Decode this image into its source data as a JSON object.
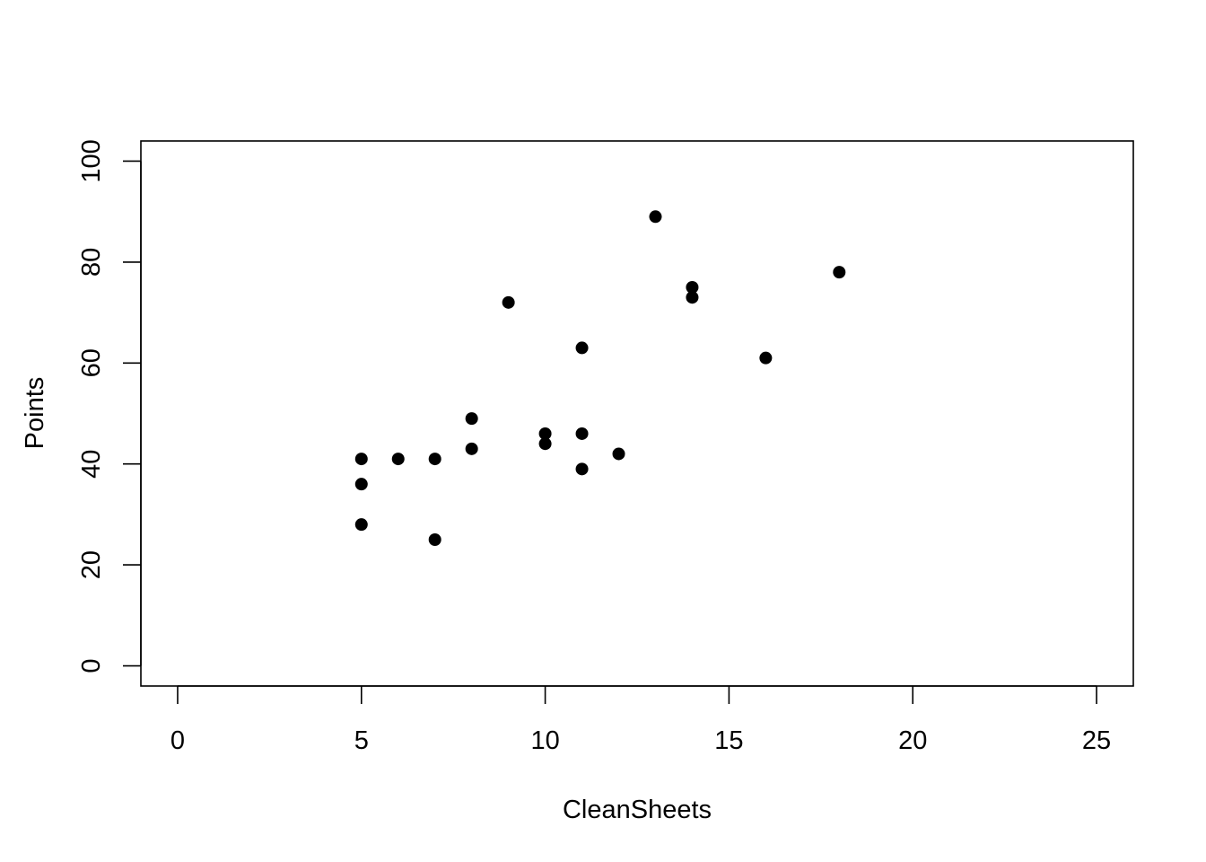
{
  "chart_data": {
    "type": "scatter",
    "title": "",
    "xlabel": "CleanSheets",
    "ylabel": "Points",
    "xlim": [
      -1,
      26
    ],
    "ylim": [
      -4,
      104
    ],
    "xticks": [
      0,
      5,
      10,
      15,
      20,
      25
    ],
    "yticks": [
      0,
      20,
      40,
      60,
      80,
      100
    ],
    "xtick_labels": [
      "0",
      "5",
      "10",
      "15",
      "20",
      "25"
    ],
    "ytick_labels": [
      "0",
      "20",
      "40",
      "60",
      "80",
      "100"
    ],
    "grid": false,
    "legend": "none",
    "point_color": "#000000",
    "points": [
      {
        "x": 5,
        "y": 41
      },
      {
        "x": 5,
        "y": 36
      },
      {
        "x": 5,
        "y": 28
      },
      {
        "x": 6,
        "y": 41
      },
      {
        "x": 7,
        "y": 41
      },
      {
        "x": 7,
        "y": 25
      },
      {
        "x": 8,
        "y": 49
      },
      {
        "x": 8,
        "y": 43
      },
      {
        "x": 9,
        "y": 72
      },
      {
        "x": 10,
        "y": 46
      },
      {
        "x": 10,
        "y": 44
      },
      {
        "x": 11,
        "y": 63
      },
      {
        "x": 11,
        "y": 46
      },
      {
        "x": 11,
        "y": 39
      },
      {
        "x": 12,
        "y": 42
      },
      {
        "x": 13,
        "y": 89
      },
      {
        "x": 14,
        "y": 75
      },
      {
        "x": 14,
        "y": 73
      },
      {
        "x": 16,
        "y": 61
      },
      {
        "x": 18,
        "y": 78
      }
    ]
  }
}
